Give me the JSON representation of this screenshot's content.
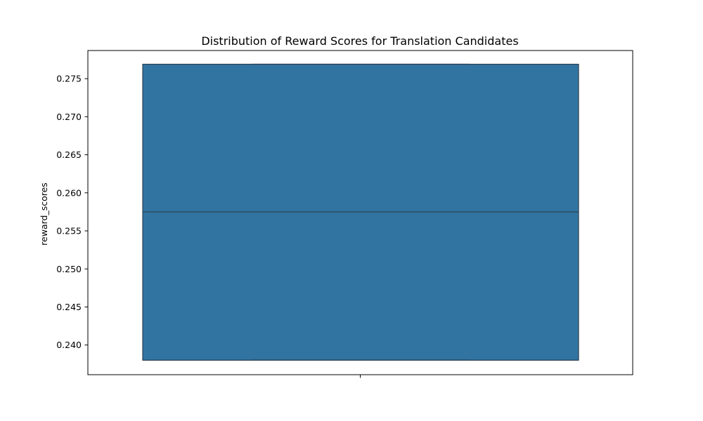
{
  "chart_data": {
    "type": "box",
    "title": "Distribution of Reward Scores for Translation Candidates",
    "xlabel": "",
    "ylabel": "reward_scores",
    "ylim": [
      0.2361,
      0.2787
    ],
    "yticks": [
      0.24,
      0.245,
      0.25,
      0.255,
      0.26,
      0.265,
      0.27,
      0.275
    ],
    "ytick_labels": [
      "0.240",
      "0.245",
      "0.250",
      "0.255",
      "0.260",
      "0.265",
      "0.270",
      "0.275"
    ],
    "grid": false,
    "box": {
      "min": 0.238,
      "q1": 0.238,
      "median": 0.2575,
      "q3": 0.2769,
      "max": 0.2769
    },
    "colors": {
      "box_fill": "#3274a1",
      "box_edge": "#2b3f52",
      "axes": "#000000"
    }
  }
}
